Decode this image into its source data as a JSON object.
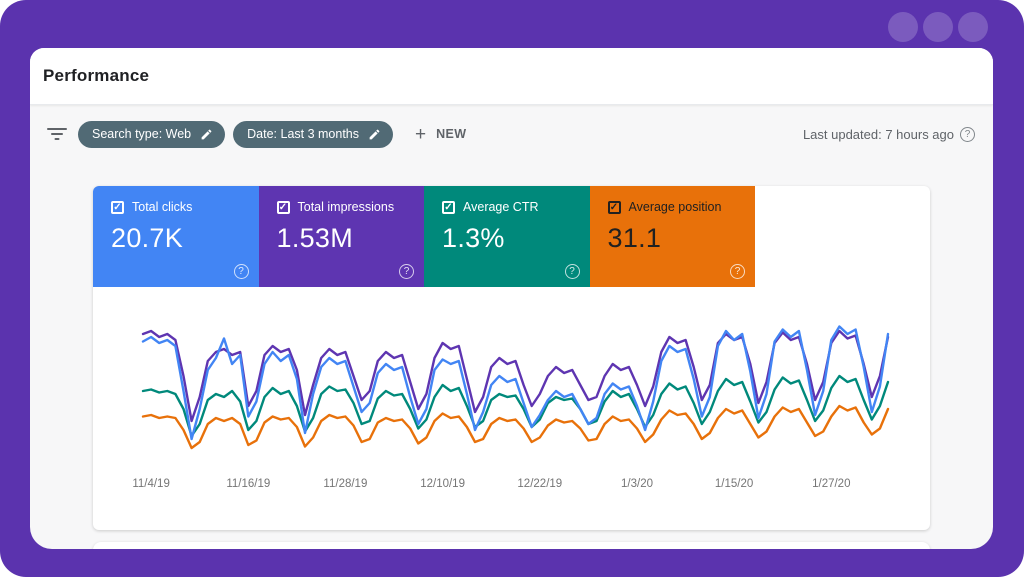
{
  "frame": {
    "bg_color": "#5b33ae",
    "dot_color": "rgba(255,255,255,0.20)"
  },
  "header": {
    "title": "Performance"
  },
  "filter_bar": {
    "chips": [
      {
        "label": "Search type: Web"
      },
      {
        "label": "Date: Last 3 months"
      }
    ],
    "new_button_label": "NEW",
    "last_updated": "Last updated: 7 hours ago",
    "help_glyph": "?"
  },
  "metrics": [
    {
      "label": "Total clicks",
      "value": "20.7K",
      "color": "#4285f4",
      "text_color": "#ffffff",
      "checked": true,
      "check_glyph": "✓",
      "help_glyph": "?"
    },
    {
      "label": "Total impressions",
      "value": "1.53M",
      "color": "#5e35b1",
      "text_color": "#ffffff",
      "checked": true,
      "check_glyph": "✓",
      "help_glyph": "?"
    },
    {
      "label": "Average CTR",
      "value": "1.3%",
      "color": "#00897b",
      "text_color": "#ffffff",
      "checked": true,
      "check_glyph": "✓",
      "help_glyph": "?"
    },
    {
      "label": "Average position",
      "value": "31.1",
      "color": "#e8710a",
      "text_color": "#212121",
      "checked": true,
      "check_glyph": "✓",
      "help_glyph": "?"
    }
  ],
  "chart_data": {
    "type": "line",
    "title": "",
    "xlabel": "",
    "ylabel": "",
    "grid": false,
    "legend_position": "none",
    "x_tick_labels": [
      "11/4/19",
      "11/16/19",
      "11/28/19",
      "12/10/19",
      "12/22/19",
      "1/3/20",
      "1/15/20",
      "1/27/20"
    ],
    "x_tick_indices": [
      1,
      13,
      25,
      37,
      49,
      61,
      73,
      85
    ],
    "n_points": 93,
    "ylim": [
      0,
      100
    ],
    "y_units": "relative scale (no visible y axis)",
    "series": [
      {
        "name": "Average position",
        "color": "#e8710a",
        "values": [
          35,
          36,
          34,
          35,
          34,
          26,
          14,
          18,
          30,
          34,
          32,
          34,
          30,
          16,
          19,
          31,
          35,
          33,
          34,
          28,
          15,
          21,
          32,
          36,
          34,
          35,
          29,
          18,
          20,
          31,
          34,
          32,
          33,
          27,
          17,
          21,
          32,
          37,
          34,
          35,
          28,
          18,
          20,
          30,
          34,
          32,
          33,
          27,
          18,
          21,
          29,
          33,
          31,
          32,
          27,
          19,
          20,
          30,
          35,
          32,
          33,
          27,
          18,
          23,
          33,
          39,
          36,
          37,
          30,
          20,
          24,
          34,
          40,
          37,
          39,
          30,
          21,
          25,
          35,
          41,
          38,
          40,
          31,
          22,
          25,
          35,
          42,
          39,
          41,
          31,
          23,
          27,
          40
        ]
      },
      {
        "name": "Average CTR",
        "color": "#00897b",
        "values": [
          52,
          53,
          51,
          52,
          50,
          40,
          22,
          30,
          46,
          50,
          48,
          52,
          45,
          26,
          32,
          48,
          54,
          50,
          52,
          42,
          25,
          34,
          50,
          55,
          52,
          53,
          44,
          30,
          32,
          47,
          52,
          49,
          50,
          40,
          27,
          33,
          48,
          56,
          52,
          54,
          42,
          28,
          32,
          46,
          50,
          48,
          49,
          40,
          28,
          33,
          44,
          48,
          46,
          47,
          40,
          30,
          32,
          45,
          52,
          48,
          50,
          40,
          28,
          36,
          50,
          57,
          53,
          55,
          44,
          30,
          38,
          52,
          60,
          56,
          58,
          45,
          31,
          38,
          53,
          61,
          57,
          59,
          46,
          32,
          39,
          54,
          62,
          58,
          60,
          46,
          33,
          42,
          58
        ]
      },
      {
        "name": "Total impressions",
        "color": "#5e35b1",
        "values": [
          90,
          92,
          88,
          90,
          86,
          62,
          32,
          48,
          72,
          78,
          80,
          76,
          78,
          42,
          52,
          76,
          82,
          78,
          80,
          66,
          36,
          56,
          74,
          80,
          76,
          78,
          62,
          46,
          52,
          72,
          78,
          74,
          76,
          58,
          40,
          50,
          74,
          84,
          80,
          82,
          60,
          38,
          48,
          68,
          74,
          70,
          72,
          56,
          42,
          50,
          62,
          68,
          64,
          66,
          56,
          46,
          48,
          62,
          70,
          66,
          68,
          56,
          42,
          55,
          78,
          88,
          84,
          86,
          68,
          46,
          56,
          84,
          90,
          86,
          88,
          70,
          44,
          58,
          84,
          91,
          86,
          88,
          70,
          46,
          58,
          84,
          92,
          87,
          89,
          70,
          48,
          62,
          88
        ]
      },
      {
        "name": "Total clicks",
        "color": "#4285f4",
        "values": [
          85,
          88,
          84,
          86,
          82,
          52,
          20,
          40,
          66,
          74,
          87,
          70,
          76,
          35,
          45,
          70,
          78,
          72,
          76,
          60,
          24,
          50,
          68,
          74,
          70,
          72,
          55,
          38,
          44,
          64,
          70,
          66,
          68,
          48,
          30,
          40,
          66,
          73,
          70,
          72,
          50,
          26,
          38,
          56,
          62,
          58,
          60,
          44,
          28,
          36,
          46,
          52,
          48,
          50,
          40,
          30,
          34,
          50,
          57,
          53,
          55,
          42,
          26,
          45,
          72,
          82,
          78,
          80,
          60,
          35,
          48,
          82,
          92,
          86,
          90,
          65,
          34,
          50,
          85,
          93,
          88,
          92,
          66,
          36,
          52,
          86,
          95,
          90,
          93,
          68,
          38,
          55,
          90
        ]
      }
    ]
  }
}
